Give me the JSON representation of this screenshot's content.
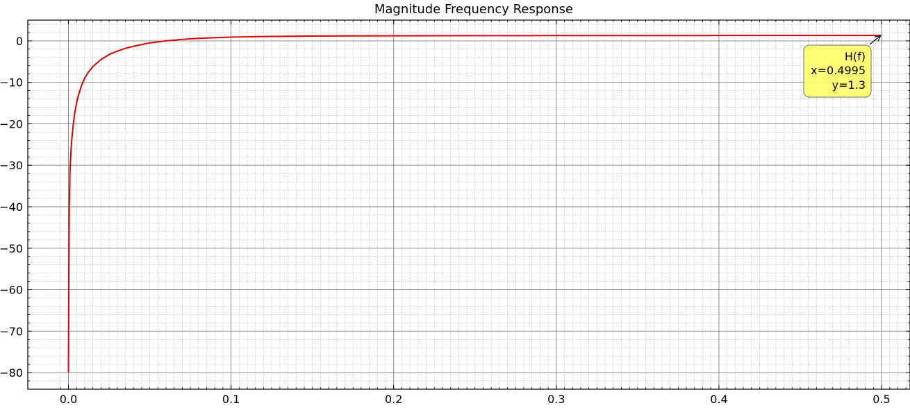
{
  "chart_data": {
    "type": "line",
    "title": "Magnitude Frequency Response",
    "xlabel": "",
    "ylabel": "",
    "xlim": [
      -0.025,
      0.5175
    ],
    "ylim": [
      -84,
      5
    ],
    "x_ticks": [
      0.0,
      0.1,
      0.2,
      0.3,
      0.4,
      0.5
    ],
    "x_tick_labels": [
      "0.0",
      "0.1",
      "0.2",
      "0.3",
      "0.4",
      "0.5"
    ],
    "y_ticks": [
      0,
      -10,
      -20,
      -30,
      -40,
      -50,
      -60,
      -70,
      -80
    ],
    "y_tick_labels": [
      "0",
      "−10",
      "−20",
      "−30",
      "−40",
      "−50",
      "−60",
      "−70",
      "−80"
    ],
    "grid": "major and minor",
    "series": [
      {
        "color": "#e00000",
        "x": [
          0.0,
          0.0002,
          0.0005,
          0.001,
          0.0015,
          0.002,
          0.003,
          0.004,
          0.005,
          0.006,
          0.008,
          0.01,
          0.012,
          0.015,
          0.02,
          0.025,
          0.03,
          0.035,
          0.04,
          0.05,
          0.06,
          0.07,
          0.08,
          0.1,
          0.12,
          0.15,
          0.2,
          0.25,
          0.3,
          0.35,
          0.4,
          0.45,
          0.4995
        ],
        "y": [
          -80,
          -60,
          -40,
          -31,
          -27,
          -24,
          -20,
          -17,
          -15,
          -13.3,
          -10.8,
          -9.0,
          -7.7,
          -6.2,
          -4.5,
          -3.3,
          -2.5,
          -1.8,
          -1.3,
          -0.5,
          0.0,
          0.35,
          0.6,
          0.9,
          1.05,
          1.15,
          1.22,
          1.25,
          1.27,
          1.28,
          1.29,
          1.3,
          1.3
        ]
      }
    ],
    "annotation": {
      "lines": [
        "H(f)",
        "x=0.4995",
        "y=1.3"
      ],
      "x": 0.4995,
      "y": 1.3,
      "box_color": "#ffff66"
    }
  }
}
